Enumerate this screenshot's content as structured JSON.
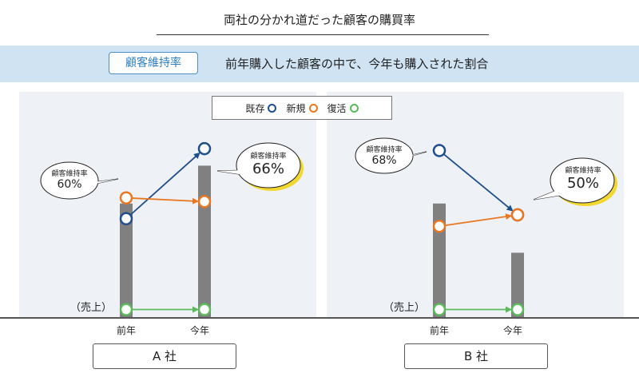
{
  "header": {
    "title": "両社の分かれ道だった顧客の購買率",
    "tag": "顧客維持率",
    "description": "前年購入した顧客の中で、今年も購入された割合"
  },
  "legend": {
    "items": [
      {
        "label": "既存",
        "color": "#1f4e8c"
      },
      {
        "label": "新規",
        "color": "#e87722"
      },
      {
        "label": "復活",
        "color": "#5cb85c"
      }
    ]
  },
  "colors": {
    "bar": "#808080",
    "bubble_highlight": "#f2d72e"
  },
  "chart_data": [
    {
      "type": "line",
      "company": "A 社",
      "categories": [
        "前年",
        "今年"
      ],
      "sales_label": "（売上）",
      "sales_bars": [
        0.6,
        0.8
      ],
      "series": [
        {
          "name": "既存",
          "values": [
            0.52,
            0.89
          ]
        },
        {
          "name": "新規",
          "values": [
            0.63,
            0.61
          ]
        },
        {
          "name": "復活",
          "values": [
            0.04,
            0.04
          ]
        }
      ],
      "annotations": [
        {
          "label": "顧客維持率",
          "value": "60%",
          "highlight": false
        },
        {
          "label": "顧客維持率",
          "value": "66%",
          "highlight": true
        }
      ]
    },
    {
      "type": "line",
      "company": "B 社",
      "categories": [
        "前年",
        "今年"
      ],
      "sales_label": "（売上）",
      "sales_bars": [
        0.6,
        0.34
      ],
      "series": [
        {
          "name": "既存",
          "values": [
            0.88,
            0.54
          ]
        },
        {
          "name": "新規",
          "values": [
            0.48,
            0.54
          ]
        },
        {
          "name": "復活",
          "values": [
            0.04,
            0.04
          ]
        }
      ],
      "annotations": [
        {
          "label": "顧客維持率",
          "value": "68%",
          "highlight": false
        },
        {
          "label": "顧客維持率",
          "value": "50%",
          "highlight": true
        }
      ]
    }
  ]
}
